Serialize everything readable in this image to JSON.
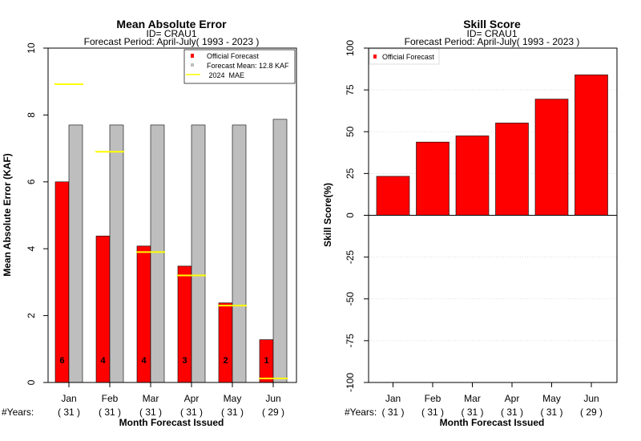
{
  "chart_data": [
    {
      "type": "bar",
      "title": "Mean Absolute Error",
      "subtitle_id": "ID= CRAU1",
      "subtitle_period": "Forecast Period: April-July( 1993 - 2023 )",
      "ylabel": "Mean Absolute Error (KAF)",
      "xlabel": "Month Forecast Issued",
      "years_label": "#Years:",
      "ylim": [
        0,
        10
      ],
      "yticks": [
        0,
        2,
        4,
        6,
        8,
        10
      ],
      "categories": [
        "Jan",
        "Feb",
        "Mar",
        "Apr",
        "May",
        "Jun"
      ],
      "years": [
        "( 31 )",
        "( 31 )",
        "( 31 )",
        "( 31 )",
        "( 31 )",
        "( 29 )"
      ],
      "series": [
        {
          "name": "Official Forecast",
          "color": "#ff0000",
          "values": [
            6.0,
            4.38,
            4.08,
            3.48,
            2.38,
            1.28
          ]
        },
        {
          "name": "Forecast Mean: 12.8 KAF",
          "color": "#bebebe",
          "values": [
            7.7,
            7.7,
            7.7,
            7.7,
            7.7,
            7.87
          ]
        }
      ],
      "mae_2024": {
        "name": " 2024  MAE",
        "color": "#ffff00",
        "values": [
          8.92,
          6.9,
          3.9,
          3.2,
          2.3,
          0.12
        ]
      },
      "bar_labels": [
        "6",
        "4",
        "4",
        "3",
        "2",
        "1"
      ],
      "legend_position": "top-right"
    },
    {
      "type": "bar",
      "title": "Skill Score",
      "subtitle_id": "ID= CRAU1",
      "subtitle_period": "Forecast Period: April-July( 1993 - 2023 )",
      "ylabel": "Skill Score(%)",
      "xlabel": "Month Forecast Issued",
      "years_label": "#Years:",
      "ylim": [
        -100,
        100
      ],
      "yticks": [
        -100,
        -75,
        -50,
        -25,
        0,
        25,
        50,
        75,
        100
      ],
      "grid": true,
      "categories": [
        "Jan",
        "Feb",
        "Mar",
        "Apr",
        "May",
        "Jun"
      ],
      "years": [
        "( 31 )",
        "( 31 )",
        "( 31 )",
        "( 31 )",
        "( 31 )",
        "( 29 )"
      ],
      "series": [
        {
          "name": "Official Forecast",
          "color": "#ff0000",
          "values": [
            23.3,
            43.8,
            47.5,
            55.2,
            69.5,
            84.0
          ]
        }
      ],
      "legend_position": "top-left"
    }
  ]
}
